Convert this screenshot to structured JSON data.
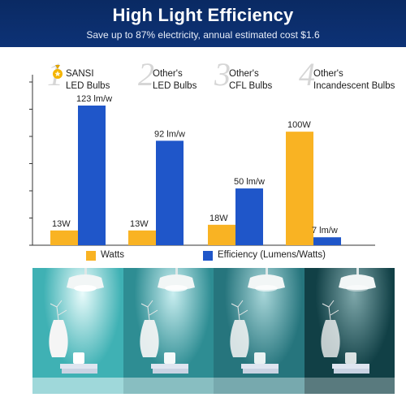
{
  "banner": {
    "title": "High Light Efficiency",
    "subtitle": "Save up to 87% electricity, annual estimated cost $1.6",
    "bg_color": "#0d3276"
  },
  "brands": [
    {
      "number": "1",
      "line1": "SANSI",
      "line2": "LED Bulbs",
      "icon": "medal-icon"
    },
    {
      "number": "2",
      "line1": "Other's",
      "line2": "LED Bulbs"
    },
    {
      "number": "3",
      "line1": "Other's",
      "line2": "CFL Bulbs"
    },
    {
      "number": "4",
      "line1": "Other's",
      "line2": "Incandescent Bulbs"
    }
  ],
  "chart_data": {
    "type": "bar",
    "categories": [
      "SANSI LED Bulbs",
      "Other's LED Bulbs",
      "Other's CFL Bulbs",
      "Other's Incandescent Bulbs"
    ],
    "series": [
      {
        "name": "Watts",
        "values": [
          13,
          13,
          18,
          100
        ],
        "labels": [
          "13W",
          "13W",
          "18W",
          "100W"
        ],
        "color": "#f9b323"
      },
      {
        "name": "Efficiency (Lumens/Watts)",
        "values": [
          123,
          92,
          50,
          7
        ],
        "labels": [
          "123 lm/w",
          "92 lm/w",
          "50 lm/w",
          "7 lm/w"
        ],
        "color": "#1f56c9"
      }
    ],
    "ylim": [
      0,
      130
    ],
    "grid": false,
    "legend_position": "bottom"
  },
  "legend": {
    "watts_label": "Watts",
    "efficiency_label": "Efficiency (Lumens/Watts)"
  },
  "photos": {
    "panels": [
      {
        "name": "photo-panel-sansi-led",
        "bg": "#3fb1b4",
        "light": "#e9fbfb",
        "dim": 1.0
      },
      {
        "name": "photo-panel-other-led",
        "bg": "#2e8d93",
        "light": "#c9eef0",
        "dim": 0.8
      },
      {
        "name": "photo-panel-cfl",
        "bg": "#26757d",
        "light": "#a8d6d9",
        "dim": 0.65
      },
      {
        "name": "photo-panel-incandescent",
        "bg": "#114046",
        "light": "#7fa8ab",
        "dim": 0.45
      }
    ]
  }
}
